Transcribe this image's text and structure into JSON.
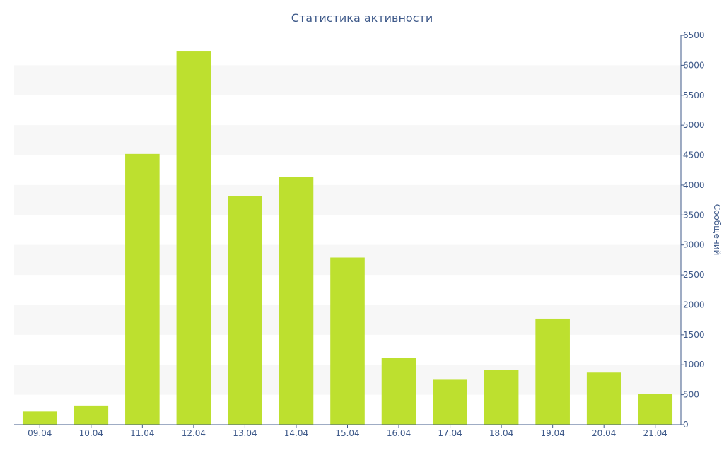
{
  "chart_data": {
    "type": "bar",
    "title": "Статистика активности",
    "xlabel": "",
    "ylabel": "Сообщений",
    "categories": [
      "09.04",
      "10.04",
      "11.04",
      "12.04",
      "13.04",
      "14.04",
      "15.04",
      "16.04",
      "17.04",
      "18.04",
      "19.04",
      "20.04",
      "21.04"
    ],
    "values": [
      220,
      320,
      4520,
      6240,
      3820,
      4130,
      2790,
      1120,
      750,
      920,
      1770,
      870,
      510
    ],
    "ylim": [
      0,
      6500
    ],
    "yticks": [
      "0",
      "500",
      "1000",
      "1500",
      "2000",
      "2500",
      "3000",
      "3500",
      "4000",
      "4500",
      "5000",
      "5500",
      "6000",
      "6500"
    ],
    "y_axis_side": "right",
    "grid": "alternating horizontal bands",
    "colors": {
      "bar": "#bde02f",
      "axis": "#3f5a8a",
      "text": "#3f5a8a",
      "band": "#f7f7f7"
    }
  }
}
